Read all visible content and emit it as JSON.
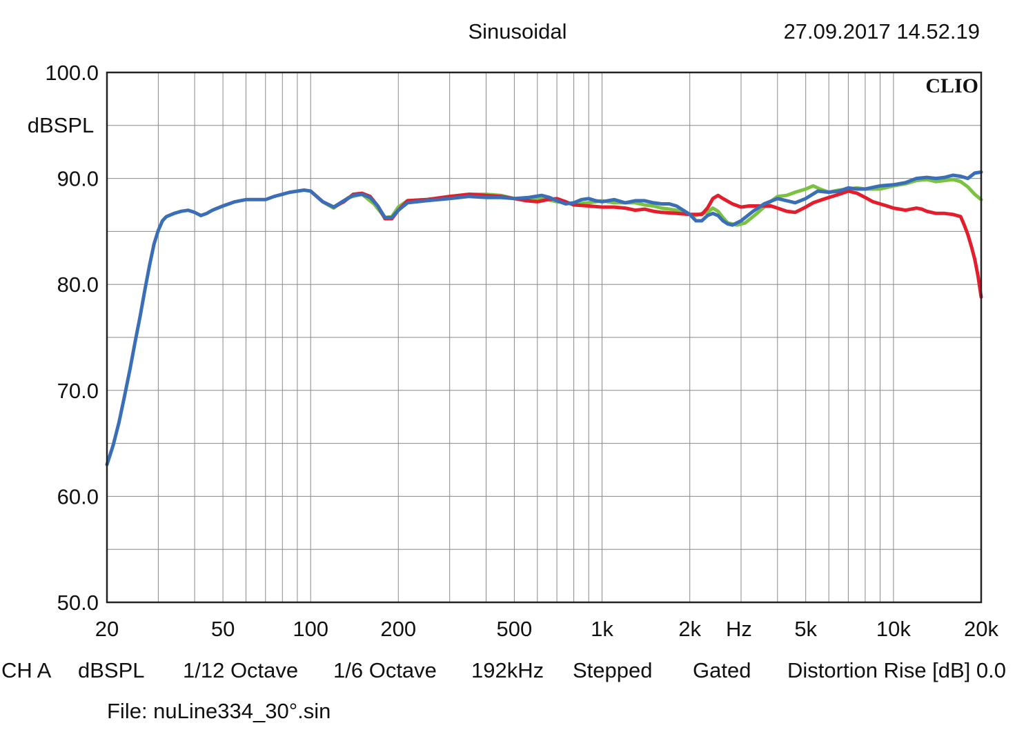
{
  "header": {
    "mode": "Sinusoidal",
    "datetime": "27.09.2017 14.52.19",
    "brand": "CLIO"
  },
  "footer": {
    "channel": "CH A",
    "unit": "dBSPL",
    "resolution": "1/12 Octave",
    "smoothing": "1/6 Octave",
    "sample_rate": "192kHz",
    "mode": "Stepped",
    "gating": "Gated",
    "distortion_label": "Distortion Rise [dB] 0.0",
    "file": "File: nuLine334_30°.sin"
  },
  "chart_data": {
    "type": "line",
    "xscale": "log",
    "xlim": [
      20,
      20000
    ],
    "ylim": [
      50,
      100
    ],
    "ylabel": "dBSPL",
    "xlabel": "Hz",
    "grid": true,
    "y_ticks": [
      {
        "value": 100,
        "label": "100.0"
      },
      {
        "value": 90,
        "label": "90.0"
      },
      {
        "value": 80,
        "label": "80.0"
      },
      {
        "value": 70,
        "label": "70.0"
      },
      {
        "value": 60,
        "label": "60.0"
      },
      {
        "value": 50,
        "label": "50.0"
      }
    ],
    "x_ticks": [
      {
        "value": 20,
        "label": "20"
      },
      {
        "value": 50,
        "label": "50"
      },
      {
        "value": 100,
        "label": "100"
      },
      {
        "value": 200,
        "label": "200"
      },
      {
        "value": 500,
        "label": "500"
      },
      {
        "value": 1000,
        "label": "1k"
      },
      {
        "value": 2000,
        "label": "2k"
      },
      {
        "value": 5000,
        "label": "5k"
      },
      {
        "value": 10000,
        "label": "10k"
      },
      {
        "value": 20000,
        "label": "20k"
      }
    ],
    "series": [
      {
        "color": "#7cc242",
        "points": [
          [
            100,
            88.8
          ],
          [
            110,
            87.8
          ],
          [
            120,
            87.2
          ],
          [
            135,
            88.2
          ],
          [
            150,
            88.5
          ],
          [
            165,
            87.6
          ],
          [
            180,
            86.3
          ],
          [
            190,
            86.4
          ],
          [
            200,
            87.3
          ],
          [
            215,
            87.9
          ],
          [
            250,
            88.0
          ],
          [
            300,
            88.3
          ],
          [
            350,
            88.5
          ],
          [
            400,
            88.5
          ],
          [
            450,
            88.4
          ],
          [
            500,
            88.1
          ],
          [
            560,
            88.0
          ],
          [
            600,
            88.1
          ],
          [
            650,
            88.0
          ],
          [
            700,
            87.8
          ],
          [
            750,
            87.7
          ],
          [
            800,
            87.6
          ],
          [
            900,
            87.7
          ],
          [
            1000,
            87.9
          ],
          [
            1100,
            87.7
          ],
          [
            1200,
            87.7
          ],
          [
            1300,
            87.7
          ],
          [
            1400,
            87.5
          ],
          [
            1500,
            87.4
          ],
          [
            1600,
            87.2
          ],
          [
            1700,
            87.1
          ],
          [
            1800,
            87.0
          ],
          [
            1900,
            86.8
          ],
          [
            2000,
            86.6
          ],
          [
            2100,
            86.5
          ],
          [
            2200,
            86.7
          ],
          [
            2300,
            86.8
          ],
          [
            2400,
            87.2
          ],
          [
            2500,
            86.9
          ],
          [
            2600,
            86.3
          ],
          [
            2700,
            85.8
          ],
          [
            2900,
            85.6
          ],
          [
            3100,
            85.8
          ],
          [
            3400,
            86.7
          ],
          [
            3700,
            87.6
          ],
          [
            4000,
            88.3
          ],
          [
            4300,
            88.4
          ],
          [
            4600,
            88.7
          ],
          [
            5000,
            89.0
          ],
          [
            5300,
            89.3
          ],
          [
            5600,
            89.0
          ],
          [
            6000,
            88.7
          ],
          [
            6500,
            88.9
          ],
          [
            7000,
            89.0
          ],
          [
            7500,
            89.1
          ],
          [
            8000,
            89.0
          ],
          [
            8500,
            89.0
          ],
          [
            9000,
            89.0
          ],
          [
            10000,
            89.3
          ],
          [
            11000,
            89.5
          ],
          [
            12000,
            89.8
          ],
          [
            13000,
            89.9
          ],
          [
            14000,
            89.7
          ],
          [
            15000,
            89.8
          ],
          [
            16000,
            89.9
          ],
          [
            17000,
            89.7
          ],
          [
            18000,
            89.2
          ],
          [
            19000,
            88.5
          ],
          [
            20000,
            88.0
          ]
        ]
      },
      {
        "color": "#e41d2d",
        "points": [
          [
            100,
            88.8
          ],
          [
            110,
            87.8
          ],
          [
            120,
            87.3
          ],
          [
            130,
            87.8
          ],
          [
            140,
            88.5
          ],
          [
            150,
            88.6
          ],
          [
            160,
            88.3
          ],
          [
            170,
            87.4
          ],
          [
            180,
            86.2
          ],
          [
            190,
            86.2
          ],
          [
            200,
            87.0
          ],
          [
            215,
            87.9
          ],
          [
            250,
            88.0
          ],
          [
            300,
            88.3
          ],
          [
            350,
            88.5
          ],
          [
            400,
            88.4
          ],
          [
            450,
            88.3
          ],
          [
            500,
            88.1
          ],
          [
            550,
            87.9
          ],
          [
            600,
            87.8
          ],
          [
            650,
            88.0
          ],
          [
            700,
            88.1
          ],
          [
            750,
            87.8
          ],
          [
            800,
            87.5
          ],
          [
            900,
            87.4
          ],
          [
            1000,
            87.3
          ],
          [
            1100,
            87.3
          ],
          [
            1200,
            87.2
          ],
          [
            1300,
            87.0
          ],
          [
            1400,
            87.1
          ],
          [
            1500,
            86.9
          ],
          [
            1600,
            86.8
          ],
          [
            1800,
            86.7
          ],
          [
            2000,
            86.6
          ],
          [
            2200,
            86.6
          ],
          [
            2300,
            87.2
          ],
          [
            2400,
            88.1
          ],
          [
            2500,
            88.4
          ],
          [
            2600,
            88.1
          ],
          [
            2800,
            87.6
          ],
          [
            3000,
            87.3
          ],
          [
            3200,
            87.4
          ],
          [
            3500,
            87.4
          ],
          [
            3800,
            87.4
          ],
          [
            4000,
            87.2
          ],
          [
            4300,
            86.9
          ],
          [
            4600,
            86.8
          ],
          [
            5000,
            87.3
          ],
          [
            5300,
            87.7
          ],
          [
            5700,
            88.0
          ],
          [
            6000,
            88.2
          ],
          [
            6500,
            88.5
          ],
          [
            7000,
            88.8
          ],
          [
            7500,
            88.6
          ],
          [
            8000,
            88.2
          ],
          [
            8500,
            87.8
          ],
          [
            9000,
            87.6
          ],
          [
            9500,
            87.4
          ],
          [
            10000,
            87.2
          ],
          [
            10500,
            87.1
          ],
          [
            11000,
            87.0
          ],
          [
            12000,
            87.2
          ],
          [
            12500,
            87.1
          ],
          [
            13000,
            86.9
          ],
          [
            14000,
            86.7
          ],
          [
            15000,
            86.7
          ],
          [
            16000,
            86.6
          ],
          [
            17000,
            86.4
          ],
          [
            17500,
            85.6
          ],
          [
            18000,
            84.7
          ],
          [
            18500,
            83.6
          ],
          [
            19000,
            82.4
          ],
          [
            19500,
            80.8
          ],
          [
            20000,
            78.8
          ]
        ]
      },
      {
        "color": "#3a6fb7",
        "points": [
          [
            20,
            63.0
          ],
          [
            21,
            64.8
          ],
          [
            22,
            67.0
          ],
          [
            23,
            69.5
          ],
          [
            24,
            72.0
          ],
          [
            25,
            74.6
          ],
          [
            26,
            77.0
          ],
          [
            27,
            79.5
          ],
          [
            28,
            81.8
          ],
          [
            29,
            83.8
          ],
          [
            30,
            85.1
          ],
          [
            31,
            86.0
          ],
          [
            32,
            86.4
          ],
          [
            34,
            86.7
          ],
          [
            36,
            86.9
          ],
          [
            38,
            87.0
          ],
          [
            40,
            86.8
          ],
          [
            42,
            86.5
          ],
          [
            44,
            86.7
          ],
          [
            46,
            87.0
          ],
          [
            50,
            87.4
          ],
          [
            55,
            87.8
          ],
          [
            60,
            88.0
          ],
          [
            65,
            88.0
          ],
          [
            70,
            88.0
          ],
          [
            75,
            88.3
          ],
          [
            80,
            88.5
          ],
          [
            85,
            88.7
          ],
          [
            90,
            88.8
          ],
          [
            95,
            88.9
          ],
          [
            100,
            88.8
          ],
          [
            110,
            87.8
          ],
          [
            120,
            87.3
          ],
          [
            130,
            87.9
          ],
          [
            140,
            88.4
          ],
          [
            150,
            88.5
          ],
          [
            160,
            88.2
          ],
          [
            170,
            87.4
          ],
          [
            180,
            86.3
          ],
          [
            190,
            86.3
          ],
          [
            200,
            87.0
          ],
          [
            215,
            87.7
          ],
          [
            250,
            87.9
          ],
          [
            300,
            88.1
          ],
          [
            350,
            88.3
          ],
          [
            400,
            88.2
          ],
          [
            450,
            88.2
          ],
          [
            500,
            88.1
          ],
          [
            560,
            88.2
          ],
          [
            620,
            88.4
          ],
          [
            660,
            88.2
          ],
          [
            700,
            87.9
          ],
          [
            750,
            87.6
          ],
          [
            800,
            87.7
          ],
          [
            850,
            88.0
          ],
          [
            900,
            88.1
          ],
          [
            950,
            87.9
          ],
          [
            1000,
            87.8
          ],
          [
            1100,
            88.0
          ],
          [
            1200,
            87.7
          ],
          [
            1300,
            87.9
          ],
          [
            1400,
            87.9
          ],
          [
            1500,
            87.7
          ],
          [
            1600,
            87.6
          ],
          [
            1700,
            87.6
          ],
          [
            1800,
            87.4
          ],
          [
            1900,
            87.0
          ],
          [
            2000,
            86.6
          ],
          [
            2100,
            86.0
          ],
          [
            2200,
            86.0
          ],
          [
            2300,
            86.5
          ],
          [
            2400,
            86.7
          ],
          [
            2500,
            86.5
          ],
          [
            2600,
            86.0
          ],
          [
            2700,
            85.7
          ],
          [
            2800,
            85.6
          ],
          [
            3000,
            86.0
          ],
          [
            3300,
            86.9
          ],
          [
            3600,
            87.6
          ],
          [
            4000,
            88.1
          ],
          [
            4300,
            87.9
          ],
          [
            4600,
            87.7
          ],
          [
            5000,
            88.1
          ],
          [
            5500,
            88.8
          ],
          [
            6000,
            88.7
          ],
          [
            6500,
            88.8
          ],
          [
            7000,
            89.1
          ],
          [
            7500,
            89.0
          ],
          [
            8000,
            89.0
          ],
          [
            9000,
            89.3
          ],
          [
            10000,
            89.4
          ],
          [
            11000,
            89.6
          ],
          [
            12000,
            90.0
          ],
          [
            13000,
            90.1
          ],
          [
            14000,
            90.0
          ],
          [
            15000,
            90.1
          ],
          [
            16000,
            90.3
          ],
          [
            17000,
            90.2
          ],
          [
            18000,
            90.0
          ],
          [
            19000,
            90.5
          ],
          [
            20000,
            90.6
          ]
        ]
      }
    ]
  }
}
